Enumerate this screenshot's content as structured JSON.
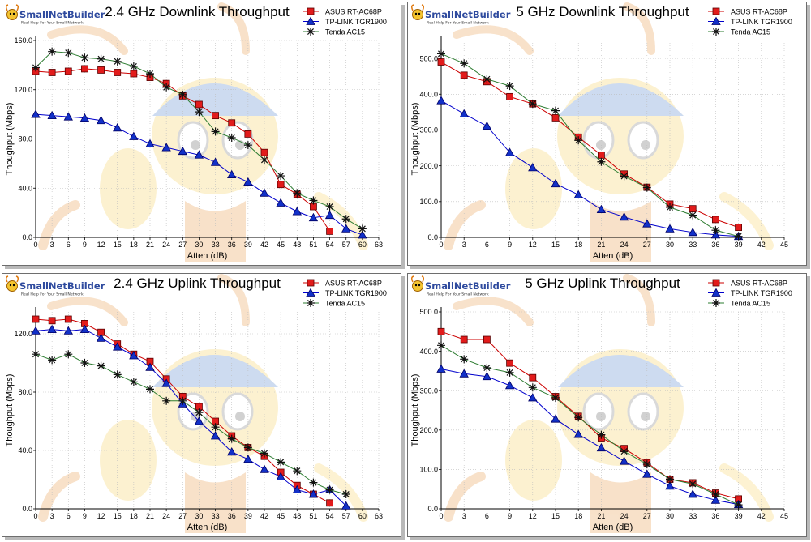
{
  "branding": {
    "logo_text": "SmallNetBuilder",
    "logo_tagline": "Real Help For Your Small Network"
  },
  "colors": {
    "asus": "#cc0000",
    "asus_fill": "#e21b1b",
    "tplink": "#0000cc",
    "tplink_fill": "#1230c8",
    "tenda": "#2e7d32",
    "tenda_marker": "#111111",
    "grid": "#bdbdbd",
    "axis": "#000000"
  },
  "chart_data": [
    {
      "id": "dl24",
      "type": "line",
      "title": "2.4 GHz Downlink Throughput",
      "xlabel": "Atten (dB)",
      "ylabel": "Thoughput (Mbps)",
      "xlim": [
        0,
        63
      ],
      "ylim": [
        0,
        160
      ],
      "xticks": [
        0,
        3,
        6,
        9,
        12,
        15,
        18,
        21,
        24,
        27,
        30,
        33,
        36,
        39,
        42,
        45,
        48,
        51,
        54,
        57,
        60,
        63
      ],
      "xtick_labels": [
        "0",
        "3",
        "6",
        "9",
        "12",
        "15",
        "18",
        "21",
        "24",
        "27",
        "30",
        "33",
        "36",
        "39",
        "42",
        "45",
        "48",
        "51",
        "54",
        "57",
        "60",
        "63"
      ],
      "yticks": [
        0,
        40,
        80,
        120,
        160
      ],
      "ytick_labels": [
        "0.0",
        "40.0",
        "80.0",
        "120.0",
        "160.0"
      ],
      "legend_position": "top-right",
      "series": [
        {
          "name": "ASUS RT-AC68P",
          "marker": "square",
          "x": [
            0,
            3,
            6,
            9,
            12,
            15,
            18,
            21,
            24,
            27,
            30,
            33,
            36,
            39,
            42,
            45,
            48,
            51,
            54
          ],
          "y": [
            135,
            134,
            135,
            137,
            136,
            134,
            133,
            130,
            125,
            115,
            108,
            99,
            93,
            84,
            69,
            43,
            35,
            25,
            5
          ]
        },
        {
          "name": "TP-LINK TGR1900",
          "marker": "triangle",
          "x": [
            0,
            3,
            6,
            9,
            12,
            15,
            18,
            21,
            24,
            27,
            30,
            33,
            36,
            39,
            42,
            45,
            48,
            51,
            54,
            57,
            60
          ],
          "y": [
            100,
            99,
            98,
            97,
            95,
            89,
            82,
            76,
            73,
            70,
            67,
            61,
            51,
            45,
            36,
            28,
            21,
            16,
            18,
            7,
            2
          ]
        },
        {
          "name": "Tenda AC15",
          "marker": "star",
          "x": [
            0,
            3,
            6,
            9,
            12,
            15,
            18,
            21,
            24,
            27,
            30,
            33,
            36,
            39,
            42,
            45,
            48,
            51,
            54,
            57,
            60
          ],
          "y": [
            138,
            151,
            150,
            146,
            145,
            143,
            139,
            133,
            122,
            116,
            102,
            86,
            81,
            75,
            63,
            50,
            36,
            30,
            25,
            15,
            7
          ]
        }
      ]
    },
    {
      "id": "dl5",
      "type": "line",
      "title": "5 GHz Downlink Throughput",
      "xlabel": "Atten (dB)",
      "ylabel": "Thoughput (Mbps)",
      "xlim": [
        0,
        45
      ],
      "ylim": [
        0,
        550
      ],
      "xticks": [
        0,
        3,
        6,
        9,
        12,
        15,
        18,
        21,
        24,
        27,
        30,
        33,
        36,
        39,
        42,
        45
      ],
      "xtick_labels": [
        "0",
        "3",
        "6",
        "9",
        "12",
        "15",
        "18",
        "21",
        "24",
        "27",
        "30",
        "33",
        "36",
        "39",
        "42",
        "45"
      ],
      "yticks": [
        0,
        100,
        200,
        300,
        400,
        500
      ],
      "ytick_labels": [
        "0.0",
        "100.0",
        "200.0",
        "300.0",
        "400.0",
        "500.0"
      ],
      "legend_position": "top-right",
      "series": [
        {
          "name": "ASUS RT-AC68P",
          "marker": "square",
          "x": [
            0,
            3,
            6,
            9,
            12,
            15,
            18,
            21,
            24,
            27,
            30,
            33,
            36,
            39
          ],
          "y": [
            490,
            453,
            435,
            393,
            373,
            334,
            280,
            230,
            177,
            140,
            93,
            80,
            50,
            28
          ]
        },
        {
          "name": "TP-LINK TGR1900",
          "marker": "triangle",
          "x": [
            0,
            3,
            6,
            9,
            12,
            15,
            18,
            21,
            24,
            27,
            30,
            33,
            36,
            39
          ],
          "y": [
            382,
            345,
            311,
            237,
            195,
            150,
            119,
            78,
            57,
            38,
            24,
            14,
            7,
            3
          ]
        },
        {
          "name": "Tenda AC15",
          "marker": "star",
          "x": [
            0,
            3,
            6,
            9,
            12,
            15,
            18,
            21,
            24,
            27,
            30,
            33,
            36,
            39
          ],
          "y": [
            513,
            486,
            442,
            423,
            373,
            354,
            271,
            211,
            171,
            139,
            84,
            62,
            20,
            3
          ]
        }
      ]
    },
    {
      "id": "ul24",
      "type": "line",
      "title": "2.4 GHz Uplink Throughput",
      "xlabel": "Atten (dB)",
      "ylabel": "Thoughput (Mbps)",
      "xlim": [
        0,
        63
      ],
      "ylim": [
        0,
        135
      ],
      "xticks": [
        0,
        3,
        6,
        9,
        12,
        15,
        18,
        21,
        24,
        27,
        30,
        33,
        36,
        39,
        42,
        45,
        48,
        51,
        54,
        57,
        60,
        63
      ],
      "xtick_labels": [
        "0",
        "3",
        "6",
        "9",
        "12",
        "15",
        "18",
        "21",
        "24",
        "27",
        "30",
        "33",
        "36",
        "39",
        "42",
        "45",
        "48",
        "51",
        "54",
        "57",
        "60",
        "63"
      ],
      "yticks": [
        0,
        40,
        80,
        120
      ],
      "ytick_labels": [
        "0.0",
        "40.0",
        "80.0",
        "120.0"
      ],
      "legend_position": "top-right",
      "series": [
        {
          "name": "ASUS RT-AC68P",
          "marker": "square",
          "x": [
            0,
            3,
            6,
            9,
            12,
            15,
            18,
            21,
            24,
            27,
            30,
            33,
            36,
            39,
            42,
            45,
            48,
            51,
            54
          ],
          "y": [
            130,
            129,
            130,
            127,
            121,
            113,
            106,
            101,
            89,
            77,
            70,
            60,
            50,
            42,
            36,
            25,
            16,
            10,
            4
          ]
        },
        {
          "name": "TP-LINK TGR1900",
          "marker": "triangle",
          "x": [
            0,
            3,
            6,
            9,
            12,
            15,
            18,
            21,
            24,
            27,
            30,
            33,
            36,
            39,
            42,
            45,
            48,
            51,
            54,
            57
          ],
          "y": [
            122,
            123,
            122,
            123,
            117,
            111,
            105,
            97,
            86,
            72,
            60,
            50,
            39,
            34,
            27,
            22,
            13,
            10,
            13,
            2
          ]
        },
        {
          "name": "Tenda AC15",
          "marker": "star",
          "x": [
            0,
            3,
            6,
            9,
            12,
            15,
            18,
            21,
            24,
            27,
            30,
            33,
            36,
            39,
            42,
            45,
            48,
            51,
            54,
            57
          ],
          "y": [
            106,
            102,
            106,
            100,
            98,
            92,
            87,
            82,
            74,
            74,
            66,
            56,
            48,
            42,
            38,
            32,
            26,
            18,
            13,
            10
          ]
        }
      ]
    },
    {
      "id": "ul5",
      "type": "line",
      "title": "5 GHz Uplink Throughput",
      "xlabel": "Atten (dB)",
      "ylabel": "Thoughput (Mbps)",
      "xlim": [
        0,
        45
      ],
      "ylim": [
        0,
        500
      ],
      "xticks": [
        0,
        3,
        6,
        9,
        12,
        15,
        18,
        21,
        24,
        27,
        30,
        33,
        36,
        39,
        42,
        45
      ],
      "xtick_labels": [
        "0",
        "3",
        "6",
        "9",
        "12",
        "15",
        "18",
        "21",
        "24",
        "27",
        "30",
        "33",
        "36",
        "39",
        "42",
        "45"
      ],
      "yticks": [
        0,
        100,
        200,
        300,
        400,
        500
      ],
      "ytick_labels": [
        "0.0",
        "100.0",
        "200.0",
        "300.0",
        "400.0",
        "500.0"
      ],
      "legend_position": "top-right",
      "series": [
        {
          "name": "ASUS RT-AC68P",
          "marker": "square",
          "x": [
            0,
            3,
            6,
            9,
            12,
            15,
            18,
            21,
            24,
            27,
            30,
            33,
            36,
            39
          ],
          "y": [
            450,
            430,
            430,
            370,
            333,
            285,
            235,
            180,
            153,
            117,
            75,
            66,
            40,
            25
          ]
        },
        {
          "name": "TP-LINK TGR1900",
          "marker": "triangle",
          "x": [
            0,
            3,
            6,
            9,
            12,
            15,
            18,
            21,
            24,
            27,
            30,
            33,
            36,
            39
          ],
          "y": [
            355,
            343,
            336,
            313,
            282,
            228,
            189,
            155,
            121,
            88,
            58,
            37,
            22,
            11
          ]
        },
        {
          "name": "Tenda AC15",
          "marker": "star",
          "x": [
            0,
            3,
            6,
            9,
            12,
            15,
            18,
            21,
            24,
            27,
            30,
            33,
            36,
            39
          ],
          "y": [
            415,
            380,
            358,
            346,
            308,
            282,
            232,
            188,
            146,
            113,
            75,
            63,
            37,
            10
          ]
        }
      ]
    }
  ]
}
